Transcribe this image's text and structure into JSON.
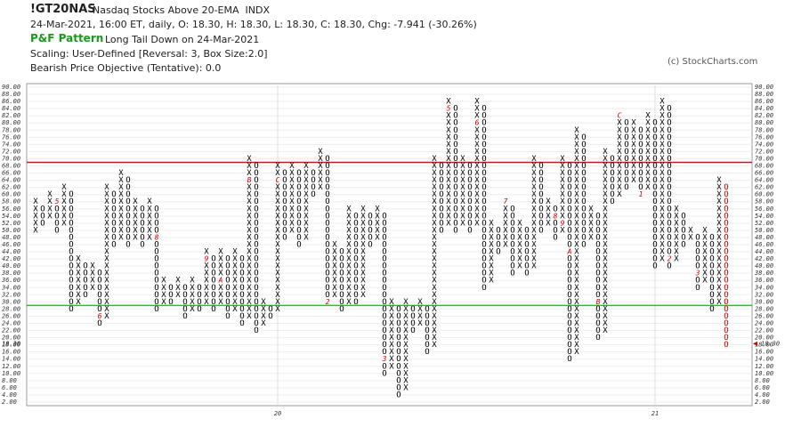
{
  "chart_data": {
    "type": "pnf",
    "title": "!GT20NAS",
    "subtitle": "Nasdaq Stocks Above 20-EMA  INDX",
    "info": "24-Mar-2021, 16:00 ET, daily, O: 18.30, H: 18.30, L: 18.30, C: 18.30, Chg: -7.941 (-30.26%)",
    "pattern_label": "P&F Pattern",
    "pattern": "Long Tail Down on 24-Mar-2021",
    "scaling": "Scaling: User-Defined [Reversal: 3, Box Size:2.0]",
    "objective": "Bearish Price Objective (Tentative): 0.0",
    "copyright": "(c) StockCharts.com",
    "box_size": 2,
    "mark_color": "#000000",
    "marker_color": "#cc0000",
    "ylim": [
      1,
      91
    ],
    "yticks": [
      {
        "value": 2,
        "label": "2.00"
      },
      {
        "value": 4,
        "label": "4.00"
      },
      {
        "value": 6,
        "label": "6.00"
      },
      {
        "value": 8,
        "label": "8.00"
      },
      {
        "value": 10,
        "label": "10.00"
      },
      {
        "value": 12,
        "label": "12.00"
      },
      {
        "value": 14,
        "label": "14.00"
      },
      {
        "value": 16,
        "label": "16.00"
      },
      {
        "value": 18,
        "label": "18.00"
      },
      {
        "value": 20,
        "label": "20.00"
      },
      {
        "value": 22,
        "label": "22.00"
      },
      {
        "value": 24,
        "label": "24.00"
      },
      {
        "value": 26,
        "label": "26.00"
      },
      {
        "value": 28,
        "label": "28.00"
      },
      {
        "value": 30,
        "label": "30.00"
      },
      {
        "value": 32,
        "label": "32.00"
      },
      {
        "value": 34,
        "label": "34.00"
      },
      {
        "value": 36,
        "label": "36.00"
      },
      {
        "value": 38,
        "label": "38.00"
      },
      {
        "value": 40,
        "label": "40.00"
      },
      {
        "value": 42,
        "label": "42.00"
      },
      {
        "value": 44,
        "label": "44.00"
      },
      {
        "value": 46,
        "label": "46.00"
      },
      {
        "value": 48,
        "label": "48.00"
      },
      {
        "value": 50,
        "label": "50.00"
      },
      {
        "value": 52,
        "label": "52.00"
      },
      {
        "value": 54,
        "label": "54.00"
      },
      {
        "value": 56,
        "label": "56.00"
      },
      {
        "value": 58,
        "label": "58.00"
      },
      {
        "value": 60,
        "label": "60.00"
      },
      {
        "value": 62,
        "label": "62.00"
      },
      {
        "value": 64,
        "label": "64.00"
      },
      {
        "value": 66,
        "label": "66.00"
      },
      {
        "value": 68,
        "label": "68.00"
      },
      {
        "value": 70,
        "label": "70.00"
      },
      {
        "value": 72,
        "label": "72.00"
      },
      {
        "value": 74,
        "label": "74.00"
      },
      {
        "value": 76,
        "label": "76.00"
      },
      {
        "value": 78,
        "label": "78.00"
      },
      {
        "value": 80,
        "label": "80.00"
      },
      {
        "value": 82,
        "label": "82.00"
      },
      {
        "value": 84,
        "label": "84.00"
      },
      {
        "value": 86,
        "label": "86.00"
      },
      {
        "value": 88,
        "label": "88.00"
      },
      {
        "value": 90,
        "label": "90.00"
      }
    ],
    "last_price": {
      "value": 18.3,
      "label": "18.30"
    },
    "reference_lines": [
      {
        "value": 69,
        "color": "#b22222"
      },
      {
        "value": 29,
        "color": "#00dd00"
      }
    ],
    "x_labels": [
      {
        "column": 34,
        "label": "20"
      },
      {
        "column": 87,
        "label": "21"
      }
    ],
    "columns": [
      {
        "type": "X",
        "low": 50,
        "high": 58
      },
      {
        "type": "O",
        "low": 52,
        "high": 56
      },
      {
        "type": "X",
        "low": 54,
        "high": 60
      },
      {
        "type": "O",
        "low": 50,
        "high": 58,
        "markers": [
          {
            "value": 58,
            "label": "5"
          }
        ]
      },
      {
        "type": "X",
        "low": 52,
        "high": 62
      },
      {
        "type": "O",
        "low": 28,
        "high": 60
      },
      {
        "type": "X",
        "low": 30,
        "high": 42
      },
      {
        "type": "O",
        "low": 32,
        "high": 40
      },
      {
        "type": "X",
        "low": 34,
        "high": 40
      },
      {
        "type": "O",
        "low": 24,
        "high": 38,
        "markers": [
          {
            "value": 26,
            "label": "6"
          }
        ]
      },
      {
        "type": "X",
        "low": 26,
        "high": 62
      },
      {
        "type": "O",
        "low": 46,
        "high": 60
      },
      {
        "type": "X",
        "low": 48,
        "high": 66
      },
      {
        "type": "O",
        "low": 46,
        "high": 64
      },
      {
        "type": "X",
        "low": 48,
        "high": 58
      },
      {
        "type": "O",
        "low": 46,
        "high": 56
      },
      {
        "type": "X",
        "low": 48,
        "high": 58
      },
      {
        "type": "O",
        "low": 28,
        "high": 56,
        "markers": [
          {
            "value": 48,
            "label": "8"
          }
        ]
      },
      {
        "type": "X",
        "low": 30,
        "high": 36
      },
      {
        "type": "O",
        "low": 30,
        "high": 34
      },
      {
        "type": "X",
        "low": 32,
        "high": 36
      },
      {
        "type": "O",
        "low": 26,
        "high": 34
      },
      {
        "type": "X",
        "low": 28,
        "high": 36
      },
      {
        "type": "O",
        "low": 28,
        "high": 34
      },
      {
        "type": "X",
        "low": 30,
        "high": 44,
        "markers": [
          {
            "value": 42,
            "label": "9"
          }
        ]
      },
      {
        "type": "O",
        "low": 28,
        "high": 42
      },
      {
        "type": "X",
        "low": 30,
        "high": 44,
        "markers": [
          {
            "value": 36,
            "label": "A"
          }
        ]
      },
      {
        "type": "O",
        "low": 26,
        "high": 42
      },
      {
        "type": "X",
        "low": 28,
        "high": 44
      },
      {
        "type": "O",
        "low": 24,
        "high": 42
      },
      {
        "type": "X",
        "low": 26,
        "high": 70,
        "markers": [
          {
            "value": 64,
            "label": "B"
          }
        ]
      },
      {
        "type": "O",
        "low": 22,
        "high": 68
      },
      {
        "type": "X",
        "low": 24,
        "high": 30
      },
      {
        "type": "O",
        "low": 26,
        "high": 28
      },
      {
        "type": "X",
        "low": 28,
        "high": 68,
        "markers": [
          {
            "value": 64,
            "label": "C"
          }
        ]
      },
      {
        "type": "O",
        "low": 48,
        "high": 66
      },
      {
        "type": "X",
        "low": 50,
        "high": 68
      },
      {
        "type": "O",
        "low": 46,
        "high": 66
      },
      {
        "type": "X",
        "low": 48,
        "high": 68
      },
      {
        "type": "O",
        "low": 60,
        "high": 66
      },
      {
        "type": "X",
        "low": 62,
        "high": 72
      },
      {
        "type": "O",
        "low": 30,
        "high": 70,
        "markers": [
          {
            "value": 30,
            "label": "2"
          }
        ]
      },
      {
        "type": "X",
        "low": 32,
        "high": 46
      },
      {
        "type": "O",
        "low": 28,
        "high": 44
      },
      {
        "type": "X",
        "low": 30,
        "high": 56
      },
      {
        "type": "O",
        "low": 30,
        "high": 54
      },
      {
        "type": "X",
        "low": 32,
        "high": 56
      },
      {
        "type": "O",
        "low": 46,
        "high": 54
      },
      {
        "type": "X",
        "low": 48,
        "high": 56
      },
      {
        "type": "O",
        "low": 10,
        "high": 54,
        "markers": [
          {
            "value": 14,
            "label": "3"
          }
        ]
      },
      {
        "type": "X",
        "low": 12,
        "high": 30
      },
      {
        "type": "O",
        "low": 4,
        "high": 28
      },
      {
        "type": "X",
        "low": 6,
        "high": 30
      },
      {
        "type": "O",
        "low": 22,
        "high": 28
      },
      {
        "type": "X",
        "low": 24,
        "high": 30
      },
      {
        "type": "O",
        "low": 16,
        "high": 28
      },
      {
        "type": "X",
        "low": 18,
        "high": 70
      },
      {
        "type": "O",
        "low": 50,
        "high": 68
      },
      {
        "type": "X",
        "low": 52,
        "high": 86,
        "markers": [
          {
            "value": 84,
            "label": "5"
          }
        ]
      },
      {
        "type": "O",
        "low": 50,
        "high": 84
      },
      {
        "type": "X",
        "low": 52,
        "high": 70
      },
      {
        "type": "O",
        "low": 50,
        "high": 68
      },
      {
        "type": "X",
        "low": 52,
        "high": 86,
        "markers": [
          {
            "value": 80,
            "label": "6"
          }
        ]
      },
      {
        "type": "O",
        "low": 34,
        "high": 84
      },
      {
        "type": "X",
        "low": 36,
        "high": 52
      },
      {
        "type": "O",
        "low": 44,
        "high": 50
      },
      {
        "type": "X",
        "low": 46,
        "high": 58,
        "markers": [
          {
            "value": 58,
            "label": "7"
          }
        ]
      },
      {
        "type": "O",
        "low": 38,
        "high": 56
      },
      {
        "type": "X",
        "low": 40,
        "high": 52
      },
      {
        "type": "O",
        "low": 38,
        "high": 50
      },
      {
        "type": "X",
        "low": 40,
        "high": 70
      },
      {
        "type": "O",
        "low": 50,
        "high": 68
      },
      {
        "type": "X",
        "low": 52,
        "high": 58
      },
      {
        "type": "O",
        "low": 48,
        "high": 56,
        "markers": [
          {
            "value": 54,
            "label": "8"
          }
        ]
      },
      {
        "type": "X",
        "low": 50,
        "high": 70,
        "markers": [
          {
            "value": 52,
            "label": "9"
          }
        ]
      },
      {
        "type": "O",
        "low": 14,
        "high": 68,
        "markers": [
          {
            "value": 44,
            "label": "A"
          }
        ]
      },
      {
        "type": "X",
        "low": 16,
        "high": 78
      },
      {
        "type": "O",
        "low": 46,
        "high": 76
      },
      {
        "type": "X",
        "low": 48,
        "high": 56
      },
      {
        "type": "O",
        "low": 20,
        "high": 54,
        "markers": [
          {
            "value": 30,
            "label": "B"
          }
        ]
      },
      {
        "type": "X",
        "low": 22,
        "high": 72
      },
      {
        "type": "O",
        "low": 58,
        "high": 70
      },
      {
        "type": "X",
        "low": 60,
        "high": 82,
        "markers": [
          {
            "value": 82,
            "label": "C"
          }
        ]
      },
      {
        "type": "O",
        "low": 62,
        "high": 80
      },
      {
        "type": "X",
        "low": 64,
        "high": 80
      },
      {
        "type": "O",
        "low": 60,
        "high": 78,
        "markers": [
          {
            "value": 60,
            "label": "1"
          }
        ]
      },
      {
        "type": "X",
        "low": 62,
        "high": 82
      },
      {
        "type": "O",
        "low": 40,
        "high": 80
      },
      {
        "type": "X",
        "low": 42,
        "high": 86
      },
      {
        "type": "O",
        "low": 40,
        "high": 84,
        "markers": [
          {
            "value": 42,
            "label": "2"
          }
        ]
      },
      {
        "type": "X",
        "low": 42,
        "high": 56
      },
      {
        "type": "O",
        "low": 46,
        "high": 54
      },
      {
        "type": "X",
        "low": 48,
        "high": 50
      },
      {
        "type": "O",
        "low": 34,
        "high": 48,
        "markers": [
          {
            "value": 38,
            "label": "3"
          }
        ]
      },
      {
        "type": "X",
        "low": 36,
        "high": 50
      },
      {
        "type": "O",
        "low": 28,
        "high": 48
      },
      {
        "type": "X",
        "low": 30,
        "high": 64
      },
      {
        "type": "O",
        "low": 18,
        "high": 62,
        "color": "#cc0000"
      }
    ]
  }
}
